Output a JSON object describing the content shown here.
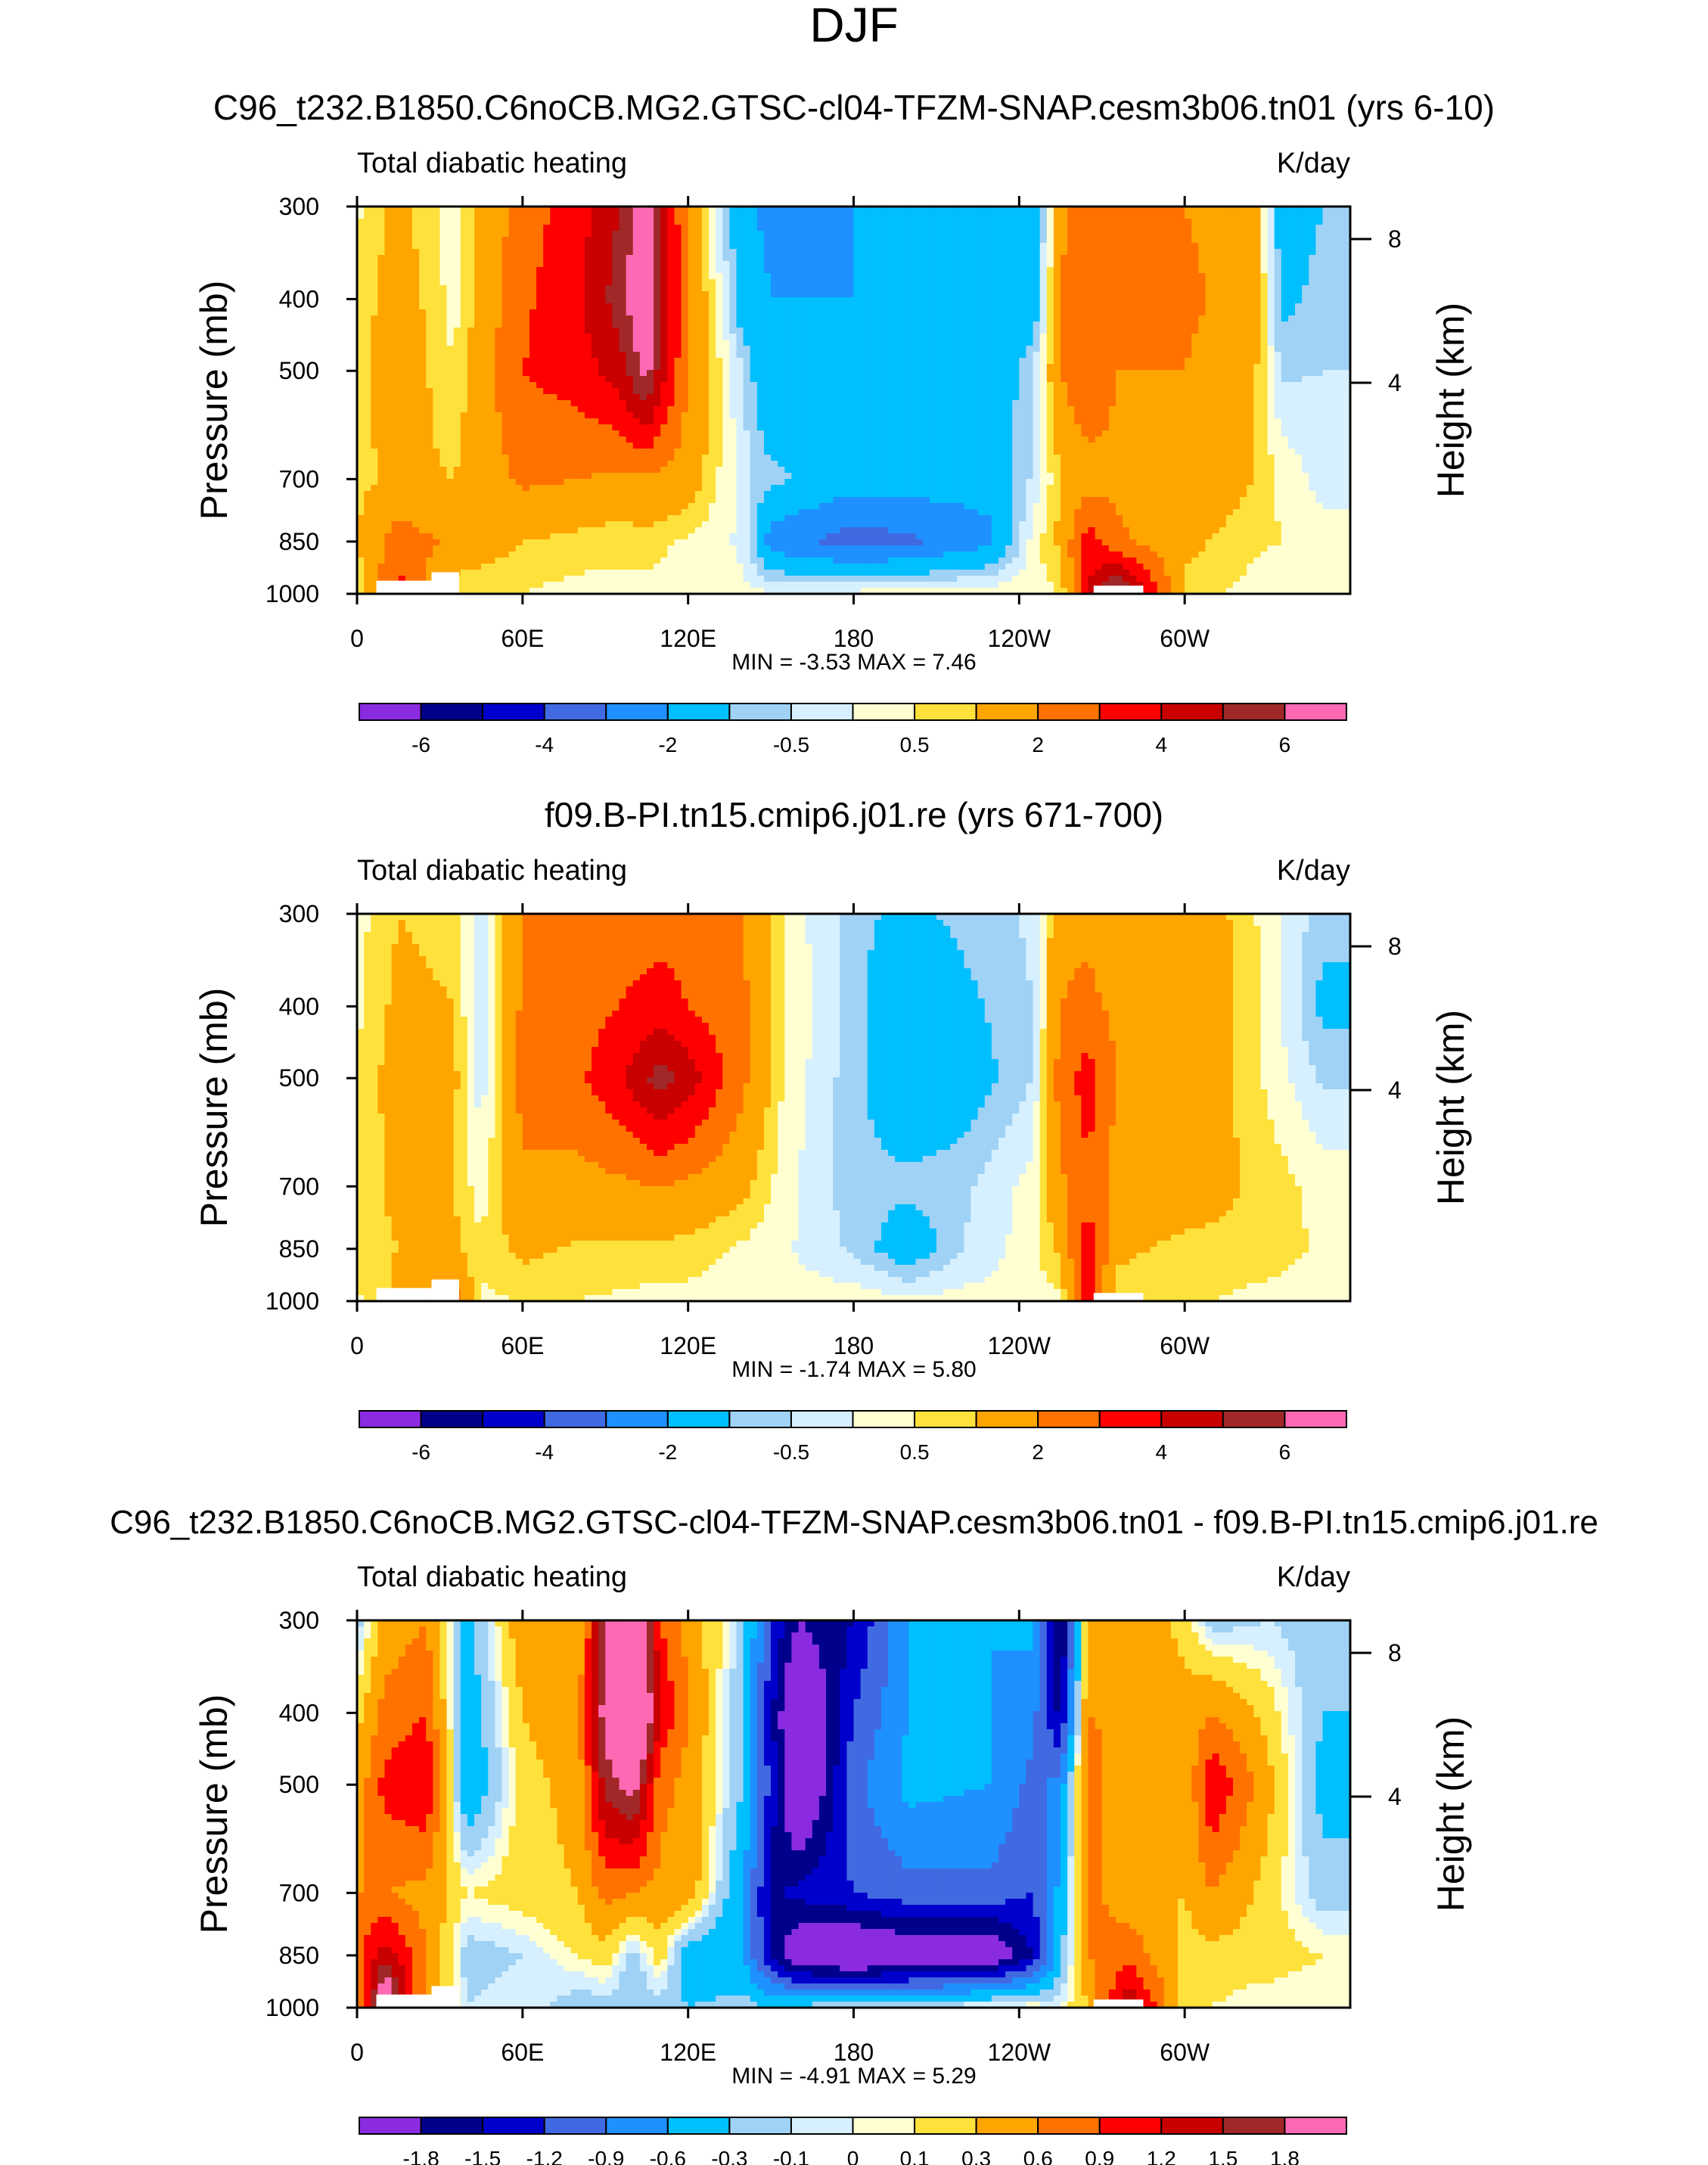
{
  "page_title": "DJF",
  "colors": {
    "palette": [
      "#8a2be2",
      "#00008b",
      "#0000cd",
      "#4169e1",
      "#1e90ff",
      "#00bfff",
      "#a0d2f5",
      "#d6f0ff",
      "#ffffd2",
      "#ffe13c",
      "#ffa500",
      "#ff7200",
      "#ff0000",
      "#c80000",
      "#a02828",
      "#ff69b4"
    ],
    "axis": "#000000",
    "missing": "#ffffff"
  },
  "chart_data": [
    {
      "type": "heatmap",
      "title": "C96_t232.B1850.C6noCB.MG2.GTSC-cl04-TFZM-SNAP.cesm3b06.tn01 (yrs 6-10)",
      "left_label": "Total diabatic heating",
      "right_label": "K/day",
      "ylabel": "Pressure (mb)",
      "y2label": "Height (km)",
      "x_ticks": [
        "0",
        "60E",
        "120E",
        "180",
        "120W",
        "60W"
      ],
      "y_ticks": [
        "300",
        "400",
        "500",
        "700",
        "850",
        "1000"
      ],
      "y2_ticks": [
        "8",
        "4"
      ],
      "stats": "MIN =  -3.53  MAX =   7.46",
      "min": -3.53,
      "max": 7.46,
      "colorbar_labels": [
        "-6",
        "-4",
        "-2",
        "-0.5",
        "0.5",
        "2",
        "4",
        "6"
      ],
      "field": {
        "lon": [
          0,
          15,
          35,
          60,
          80,
          95,
          105,
          110,
          120,
          140,
          150,
          180,
          200,
          230,
          245,
          255,
          265,
          275,
          300,
          325,
          335,
          350
        ],
        "levels": [
          300,
          400,
          500,
          700,
          850,
          1000
        ],
        "values": [
          [
            0.4,
            1.2,
            0.2,
            2.5,
            3.5,
            5.0,
            7.0,
            4.5,
            2.0,
            -1.8,
            -2.2,
            -2.0,
            -2.0,
            -1.8,
            -2.0,
            1.8,
            2.5,
            2.0,
            2.0,
            1.5,
            -1.5,
            -1.0
          ],
          [
            0.6,
            1.5,
            0.3,
            2.8,
            3.8,
            5.5,
            7.4,
            5.0,
            2.2,
            -1.6,
            -2.0,
            -2.0,
            -2.0,
            -1.8,
            -1.8,
            2.0,
            2.8,
            2.2,
            2.2,
            1.6,
            -1.2,
            -0.8
          ],
          [
            0.7,
            1.6,
            0.5,
            3.0,
            3.5,
            4.5,
            6.5,
            4.5,
            2.0,
            -0.5,
            -2.0,
            -2.0,
            -2.0,
            -1.8,
            -0.5,
            2.0,
            3.0,
            2.0,
            2.0,
            1.2,
            -0.6,
            -0.5
          ],
          [
            0.8,
            1.2,
            1.0,
            2.2,
            2.0,
            1.8,
            1.8,
            1.8,
            1.5,
            -0.3,
            -0.8,
            -1.5,
            -1.5,
            -1.6,
            -0.4,
            1.0,
            1.5,
            1.8,
            1.8,
            1.0,
            0.4,
            -0.2
          ],
          [
            1.0,
            2.5,
            1.8,
            1.0,
            0.8,
            0.6,
            0.8,
            0.6,
            0.4,
            -0.1,
            -2.5,
            -3.5,
            -3.2,
            -2.2,
            0.2,
            1.2,
            3.5,
            2.2,
            1.2,
            0.6,
            0.5,
            0.2
          ],
          [
            0.4,
            3.5,
            0.5,
            0.5,
            0.3,
            0.4,
            0.3,
            0.3,
            0.2,
            0.1,
            0.1,
            0.2,
            0.3,
            0.4,
            0.3,
            0.5,
            4.0,
            6.5,
            0.8,
            0.3,
            0.2,
            0.1
          ]
        ]
      },
      "missing_regions": [
        {
          "lon0": 7,
          "lon1": 27,
          "p0": 960,
          "p1": 1000
        },
        {
          "lon0": 27,
          "lon1": 37,
          "p0": 935,
          "p1": 1000
        },
        {
          "lon0": 267,
          "lon1": 285,
          "p0": 975,
          "p1": 1000
        }
      ]
    },
    {
      "type": "heatmap",
      "title": "f09.B-PI.tn15.cmip6.j01.re (yrs 671-700)",
      "left_label": "Total diabatic heating",
      "right_label": "K/day",
      "ylabel": "Pressure (mb)",
      "y2label": "Height (km)",
      "x_ticks": [
        "0",
        "60E",
        "120E",
        "180",
        "120W",
        "60W"
      ],
      "y_ticks": [
        "300",
        "400",
        "500",
        "700",
        "850",
        "1000"
      ],
      "y2_ticks": [
        "8",
        "4"
      ],
      "stats": "MIN =  -1.74  MAX =   5.80",
      "min": -1.74,
      "max": 5.8,
      "colorbar_labels": [
        "-6",
        "-4",
        "-2",
        "-0.5",
        "0.5",
        "2",
        "4",
        "6"
      ],
      "field": {
        "lon": [
          0,
          15,
          35,
          45,
          60,
          80,
          95,
          110,
          120,
          140,
          155,
          180,
          200,
          220,
          245,
          255,
          265,
          275,
          300,
          330,
          350
        ],
        "levels": [
          300,
          400,
          500,
          700,
          850,
          1000
        ],
        "values": [
          [
            0.3,
            1.0,
            0.8,
            -0.4,
            2.0,
            2.2,
            2.5,
            2.5,
            2.5,
            2.0,
            0.4,
            -0.8,
            -1.2,
            -0.8,
            -0.4,
            1.8,
            1.8,
            1.6,
            1.8,
            0.3,
            -0.8
          ],
          [
            0.4,
            1.2,
            1.0,
            -0.4,
            2.2,
            2.5,
            3.0,
            3.5,
            3.0,
            2.2,
            0.5,
            -0.8,
            -1.8,
            -1.2,
            -0.5,
            2.0,
            2.2,
            1.8,
            2.0,
            0.4,
            -1.2
          ],
          [
            0.5,
            1.4,
            1.2,
            -0.3,
            2.4,
            2.8,
            3.8,
            5.5,
            4.5,
            2.2,
            0.4,
            -0.8,
            -1.8,
            -1.5,
            -0.5,
            2.5,
            3.5,
            2.0,
            1.8,
            0.4,
            -0.6
          ],
          [
            0.6,
            1.2,
            1.0,
            0.2,
            1.8,
            1.6,
            1.8,
            2.0,
            1.8,
            1.2,
            0.2,
            -0.8,
            -0.8,
            -0.6,
            0.2,
            1.8,
            2.8,
            1.6,
            1.5,
            0.8,
            0.3
          ],
          [
            0.8,
            1.0,
            1.2,
            0.6,
            1.2,
            0.9,
            0.9,
            0.8,
            0.8,
            0.4,
            0.1,
            -0.6,
            -1.6,
            -0.5,
            0.3,
            1.2,
            3.5,
            1.2,
            0.8,
            0.8,
            0.4
          ],
          [
            0.4,
            1.2,
            2.5,
            0.4,
            0.5,
            0.5,
            0.4,
            0.3,
            0.3,
            0.2,
            0.2,
            0.3,
            0.2,
            0.2,
            0.2,
            0.4,
            4.0,
            0.6,
            0.6,
            0.3,
            0.2
          ]
        ]
      },
      "missing_regions": [
        {
          "lon0": 7,
          "lon1": 27,
          "p0": 960,
          "p1": 1000
        },
        {
          "lon0": 27,
          "lon1": 37,
          "p0": 935,
          "p1": 1000
        },
        {
          "lon0": 267,
          "lon1": 285,
          "p0": 975,
          "p1": 1000
        }
      ]
    },
    {
      "type": "heatmap",
      "title": "C96_t232.B1850.C6noCB.MG2.GTSC-cl04-TFZM-SNAP.cesm3b06.tn01 - f09.B-PI.tn15.cmip6.j01.re",
      "left_label": "Total diabatic heating",
      "right_label": "K/day",
      "ylabel": "Pressure (mb)",
      "y2label": "Height (km)",
      "x_ticks": [
        "0",
        "60E",
        "120E",
        "180",
        "120W",
        "60W"
      ],
      "y_ticks": [
        "300",
        "400",
        "500",
        "700",
        "850",
        "1000"
      ],
      "y2_ticks": [
        "8",
        "4"
      ],
      "stats": "MIN =  -4.91  MAX =   5.29",
      "min": -4.91,
      "max": 5.29,
      "colorbar_labels": [
        "-1.8",
        "-1.5",
        "-1.2",
        "-0.9",
        "-0.6",
        "-0.3",
        "-0.1",
        "0",
        "0.1",
        "0.3",
        "0.6",
        "0.9",
        "1.2",
        "1.5",
        "1.8"
      ],
      "field": {
        "lon": [
          0,
          10,
          25,
          40,
          60,
          80,
          90,
          100,
          110,
          120,
          140,
          150,
          160,
          180,
          200,
          230,
          245,
          255,
          265,
          280,
          300,
          310,
          330,
          350
        ],
        "levels": [
          300,
          400,
          500,
          700,
          850,
          1000
        ],
        "values": [
          [
            -0.2,
            0.4,
            0.6,
            -0.4,
            0.5,
            0.3,
            1.8,
            2.5,
            0.9,
            0.5,
            -0.2,
            -1.2,
            -1.8,
            -1.5,
            -0.6,
            -0.6,
            -0.5,
            -1.9,
            0.4,
            0.6,
            0.2,
            -0.2,
            -0.1,
            -0.2
          ],
          [
            0.2,
            0.7,
            0.9,
            -0.5,
            0.3,
            0.5,
            2.0,
            3.0,
            1.2,
            0.6,
            -0.3,
            -1.4,
            -2.5,
            -1.2,
            -0.6,
            -0.6,
            -0.8,
            -1.6,
            0.6,
            0.5,
            0.4,
            0.6,
            0.2,
            -0.3
          ],
          [
            0.4,
            1.0,
            1.2,
            -0.6,
            0.2,
            0.4,
            1.6,
            2.0,
            0.7,
            0.5,
            -0.3,
            -1.3,
            -2.5,
            -1.0,
            -0.5,
            -0.6,
            -1.0,
            -0.8,
            0.8,
            0.3,
            0.3,
            1.2,
            0.4,
            -0.4
          ],
          [
            0.6,
            0.6,
            0.5,
            0.1,
            0.2,
            0.3,
            0.7,
            0.6,
            0.5,
            0.5,
            -0.6,
            -1.6,
            -1.4,
            -1.2,
            -1.0,
            -1.0,
            -1.2,
            -0.5,
            0.7,
            0.4,
            0.3,
            0.6,
            0.2,
            -0.2
          ],
          [
            0.8,
            1.4,
            0.6,
            -0.2,
            -0.1,
            0.1,
            0.2,
            -0.2,
            0.2,
            -0.5,
            -0.6,
            -1.5,
            -2.2,
            -2.4,
            -2.2,
            -2.2,
            -1.5,
            -0.4,
            0.6,
            0.8,
            0.2,
            0.2,
            0.2,
            0.1
          ],
          [
            0.4,
            2.5,
            0.4,
            -0.1,
            0.0,
            -0.2,
            -0.2,
            -0.2,
            -0.2,
            -0.3,
            -0.2,
            -0.3,
            -0.2,
            -0.1,
            -0.1,
            0.1,
            0.1,
            0.0,
            0.3,
            1.5,
            0.2,
            0.1,
            0.0,
            0.0
          ]
        ]
      },
      "missing_regions": [
        {
          "lon0": 7,
          "lon1": 27,
          "p0": 960,
          "p1": 1000
        },
        {
          "lon0": 27,
          "lon1": 37,
          "p0": 935,
          "p1": 1000
        },
        {
          "lon0": 267,
          "lon1": 285,
          "p0": 975,
          "p1": 1000
        }
      ]
    }
  ]
}
